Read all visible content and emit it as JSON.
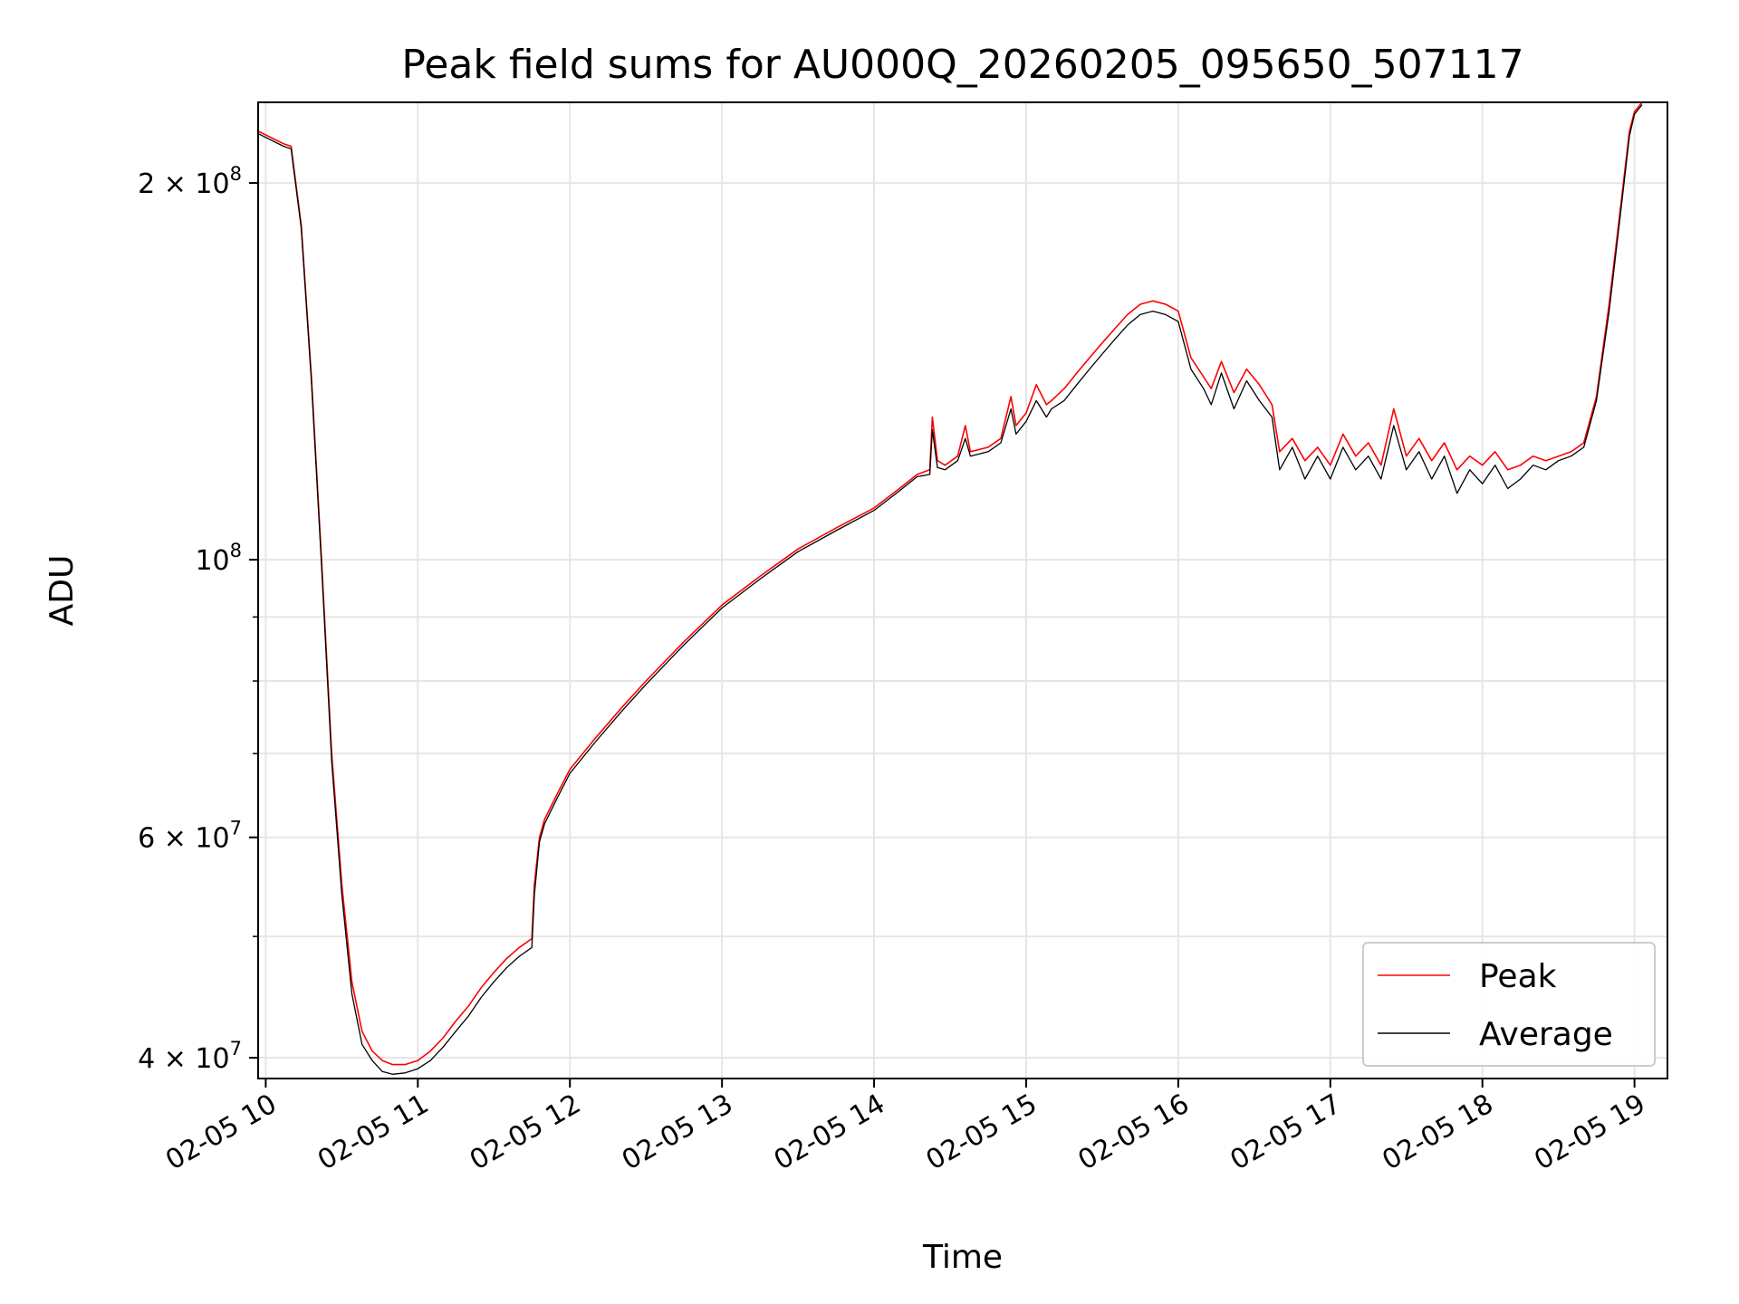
{
  "chart_data": {
    "type": "line",
    "title": "Peak field sums for AU000Q_20260205_095650_507117",
    "xlabel": "Time",
    "ylabel": "ADU",
    "y_scale": "log",
    "grid": true,
    "legend_placement": "bottom-right",
    "xlim": [
      "2026-02-05 09:57",
      "2026-02-05 19:13"
    ],
    "ylim": [
      38500000,
      232000000
    ],
    "x_ticks": [
      {
        "value": "2026-02-05 10:00",
        "label": "02-05 10"
      },
      {
        "value": "2026-02-05 11:00",
        "label": "02-05 11"
      },
      {
        "value": "2026-02-05 12:00",
        "label": "02-05 12"
      },
      {
        "value": "2026-02-05 13:00",
        "label": "02-05 13"
      },
      {
        "value": "2026-02-05 14:00",
        "label": "02-05 14"
      },
      {
        "value": "2026-02-05 15:00",
        "label": "02-05 15"
      },
      {
        "value": "2026-02-05 16:00",
        "label": "02-05 16"
      },
      {
        "value": "2026-02-05 17:00",
        "label": "02-05 17"
      },
      {
        "value": "2026-02-05 18:00",
        "label": "02-05 18"
      },
      {
        "value": "2026-02-05 19:00",
        "label": "02-05 19"
      }
    ],
    "y_ticks": [
      {
        "value": 40000000,
        "mantissa": "4 × 10",
        "exp": "7"
      },
      {
        "value": 60000000,
        "mantissa": "6 × 10",
        "exp": "7"
      },
      {
        "value": 100000000,
        "mantissa": "10",
        "exp": "8"
      },
      {
        "value": 200000000,
        "mantissa": "2 × 10",
        "exp": "8"
      }
    ],
    "y_minor_ticks": [
      50000000,
      70000000,
      80000000,
      90000000
    ],
    "series": [
      {
        "name": "Peak",
        "color": "#ff0000",
        "x": [
          "2026-02-05 09:57",
          "2026-02-05 10:07",
          "2026-02-05 10:10",
          "2026-02-05 10:14",
          "2026-02-05 10:18",
          "2026-02-05 10:22",
          "2026-02-05 10:26",
          "2026-02-05 10:30",
          "2026-02-05 10:34",
          "2026-02-05 10:38",
          "2026-02-05 10:42",
          "2026-02-05 10:46",
          "2026-02-05 10:50",
          "2026-02-05 10:55",
          "2026-02-05 11:00",
          "2026-02-05 11:05",
          "2026-02-05 11:10",
          "2026-02-05 11:15",
          "2026-02-05 11:20",
          "2026-02-05 11:25",
          "2026-02-05 11:30",
          "2026-02-05 11:35",
          "2026-02-05 11:40",
          "2026-02-05 11:45",
          "2026-02-05 11:46",
          "2026-02-05 11:48",
          "2026-02-05 11:50",
          "2026-02-05 11:55",
          "2026-02-05 12:00",
          "2026-02-05 12:10",
          "2026-02-05 12:20",
          "2026-02-05 12:30",
          "2026-02-05 12:45",
          "2026-02-05 13:00",
          "2026-02-05 13:15",
          "2026-02-05 13:30",
          "2026-02-05 13:45",
          "2026-02-05 14:00",
          "2026-02-05 14:10",
          "2026-02-05 14:17",
          "2026-02-05 14:22",
          "2026-02-05 14:23",
          "2026-02-05 14:25",
          "2026-02-05 14:28",
          "2026-02-05 14:33",
          "2026-02-05 14:36",
          "2026-02-05 14:38",
          "2026-02-05 14:45",
          "2026-02-05 14:50",
          "2026-02-05 14:54",
          "2026-02-05 14:56",
          "2026-02-05 15:00",
          "2026-02-05 15:04",
          "2026-02-05 15:08",
          "2026-02-05 15:10",
          "2026-02-05 15:15",
          "2026-02-05 15:20",
          "2026-02-05 15:25",
          "2026-02-05 15:30",
          "2026-02-05 15:35",
          "2026-02-05 15:40",
          "2026-02-05 15:45",
          "2026-02-05 15:50",
          "2026-02-05 15:55",
          "2026-02-05 16:00",
          "2026-02-05 16:05",
          "2026-02-05 16:10",
          "2026-02-05 16:13",
          "2026-02-05 16:17",
          "2026-02-05 16:22",
          "2026-02-05 16:27",
          "2026-02-05 16:32",
          "2026-02-05 16:37",
          "2026-02-05 16:40",
          "2026-02-05 16:45",
          "2026-02-05 16:50",
          "2026-02-05 16:55",
          "2026-02-05 17:00",
          "2026-02-05 17:05",
          "2026-02-05 17:10",
          "2026-02-05 17:15",
          "2026-02-05 17:20",
          "2026-02-05 17:25",
          "2026-02-05 17:30",
          "2026-02-05 17:35",
          "2026-02-05 17:40",
          "2026-02-05 17:45",
          "2026-02-05 17:50",
          "2026-02-05 17:55",
          "2026-02-05 18:00",
          "2026-02-05 18:05",
          "2026-02-05 18:10",
          "2026-02-05 18:15",
          "2026-02-05 18:20",
          "2026-02-05 18:25",
          "2026-02-05 18:30",
          "2026-02-05 18:35",
          "2026-02-05 18:40",
          "2026-02-05 18:45",
          "2026-02-05 18:50",
          "2026-02-05 18:55",
          "2026-02-05 18:58",
          "2026-02-05 19:00",
          "2026-02-05 19:03"
        ],
        "y": [
          220000000,
          215000000,
          214000000,
          185000000,
          140000000,
          100000000,
          70000000,
          55000000,
          46000000,
          42000000,
          40500000,
          39800000,
          39500000,
          39500000,
          39800000,
          40500000,
          41500000,
          42800000,
          44000000,
          45500000,
          46800000,
          48000000,
          49000000,
          49800000,
          55000000,
          60000000,
          62000000,
          65000000,
          68000000,
          72000000,
          76000000,
          80000000,
          86000000,
          92000000,
          97000000,
          102000000,
          106000000,
          110000000,
          114000000,
          117000000,
          118000000,
          130000000,
          120000000,
          119000000,
          121000000,
          128000000,
          122000000,
          123000000,
          125000000,
          135000000,
          128000000,
          131000000,
          138000000,
          133000000,
          134000000,
          137000000,
          141000000,
          145000000,
          149000000,
          153000000,
          157000000,
          160000000,
          161000000,
          160000000,
          158000000,
          145000000,
          140000000,
          137000000,
          144000000,
          136000000,
          142000000,
          138000000,
          133000000,
          122000000,
          125000000,
          120000000,
          123000000,
          119000000,
          126000000,
          121000000,
          124000000,
          119000000,
          132000000,
          121000000,
          125000000,
          120000000,
          124000000,
          118000000,
          121000000,
          119000000,
          122000000,
          118000000,
          119000000,
          121000000,
          120000000,
          121000000,
          122000000,
          124000000,
          135000000,
          160000000,
          195000000,
          220000000,
          228000000,
          232000000
        ]
      },
      {
        "name": "Average",
        "color": "#000000",
        "x": [
          "2026-02-05 09:57",
          "2026-02-05 10:07",
          "2026-02-05 10:10",
          "2026-02-05 10:14",
          "2026-02-05 10:18",
          "2026-02-05 10:22",
          "2026-02-05 10:26",
          "2026-02-05 10:30",
          "2026-02-05 10:34",
          "2026-02-05 10:38",
          "2026-02-05 10:42",
          "2026-02-05 10:46",
          "2026-02-05 10:50",
          "2026-02-05 10:55",
          "2026-02-05 11:00",
          "2026-02-05 11:05",
          "2026-02-05 11:10",
          "2026-02-05 11:15",
          "2026-02-05 11:20",
          "2026-02-05 11:25",
          "2026-02-05 11:30",
          "2026-02-05 11:35",
          "2026-02-05 11:40",
          "2026-02-05 11:45",
          "2026-02-05 11:46",
          "2026-02-05 11:48",
          "2026-02-05 11:50",
          "2026-02-05 11:55",
          "2026-02-05 12:00",
          "2026-02-05 12:10",
          "2026-02-05 12:20",
          "2026-02-05 12:30",
          "2026-02-05 12:45",
          "2026-02-05 13:00",
          "2026-02-05 13:15",
          "2026-02-05 13:30",
          "2026-02-05 13:45",
          "2026-02-05 14:00",
          "2026-02-05 14:10",
          "2026-02-05 14:17",
          "2026-02-05 14:22",
          "2026-02-05 14:23",
          "2026-02-05 14:25",
          "2026-02-05 14:28",
          "2026-02-05 14:33",
          "2026-02-05 14:36",
          "2026-02-05 14:38",
          "2026-02-05 14:45",
          "2026-02-05 14:50",
          "2026-02-05 14:54",
          "2026-02-05 14:56",
          "2026-02-05 15:00",
          "2026-02-05 15:04",
          "2026-02-05 15:08",
          "2026-02-05 15:10",
          "2026-02-05 15:15",
          "2026-02-05 15:20",
          "2026-02-05 15:25",
          "2026-02-05 15:30",
          "2026-02-05 15:35",
          "2026-02-05 15:40",
          "2026-02-05 15:45",
          "2026-02-05 15:50",
          "2026-02-05 15:55",
          "2026-02-05 16:00",
          "2026-02-05 16:05",
          "2026-02-05 16:10",
          "2026-02-05 16:13",
          "2026-02-05 16:17",
          "2026-02-05 16:22",
          "2026-02-05 16:27",
          "2026-02-05 16:32",
          "2026-02-05 16:37",
          "2026-02-05 16:40",
          "2026-02-05 16:45",
          "2026-02-05 16:50",
          "2026-02-05 16:55",
          "2026-02-05 17:00",
          "2026-02-05 17:05",
          "2026-02-05 17:10",
          "2026-02-05 17:15",
          "2026-02-05 17:20",
          "2026-02-05 17:25",
          "2026-02-05 17:30",
          "2026-02-05 17:35",
          "2026-02-05 17:40",
          "2026-02-05 17:45",
          "2026-02-05 17:50",
          "2026-02-05 17:55",
          "2026-02-05 18:00",
          "2026-02-05 18:05",
          "2026-02-05 18:10",
          "2026-02-05 18:15",
          "2026-02-05 18:20",
          "2026-02-05 18:25",
          "2026-02-05 18:30",
          "2026-02-05 18:35",
          "2026-02-05 18:40",
          "2026-02-05 18:45",
          "2026-02-05 18:50",
          "2026-02-05 18:55",
          "2026-02-05 18:58",
          "2026-02-05 19:00",
          "2026-02-05 19:03"
        ],
        "y": [
          219000000,
          214000000,
          213000000,
          184000000,
          139000000,
          99000000,
          69000000,
          54000000,
          45000000,
          41000000,
          39800000,
          39000000,
          38800000,
          38900000,
          39200000,
          39800000,
          40800000,
          42000000,
          43200000,
          44700000,
          46000000,
          47200000,
          48200000,
          49000000,
          54000000,
          59500000,
          61500000,
          64500000,
          67500000,
          71500000,
          75500000,
          79500000,
          85500000,
          91500000,
          96500000,
          101500000,
          105500000,
          109500000,
          113500000,
          116500000,
          117000000,
          127000000,
          118500000,
          118000000,
          120000000,
          125000000,
          121000000,
          122000000,
          124000000,
          132000000,
          126000000,
          129000000,
          134000000,
          130000000,
          132000000,
          134000000,
          138000000,
          142000000,
          146000000,
          150000000,
          154000000,
          157000000,
          158000000,
          157000000,
          155000000,
          142000000,
          137000000,
          133000000,
          141000000,
          132000000,
          139000000,
          134000000,
          130000000,
          118000000,
          123000000,
          116000000,
          121000000,
          116000000,
          123000000,
          118000000,
          121000000,
          116000000,
          128000000,
          118000000,
          122000000,
          116000000,
          121000000,
          113000000,
          118000000,
          115000000,
          119000000,
          114000000,
          116000000,
          119000000,
          118000000,
          120000000,
          121000000,
          123000000,
          134000000,
          158000000,
          193000000,
          218000000,
          227000000,
          231000000
        ]
      }
    ]
  }
}
